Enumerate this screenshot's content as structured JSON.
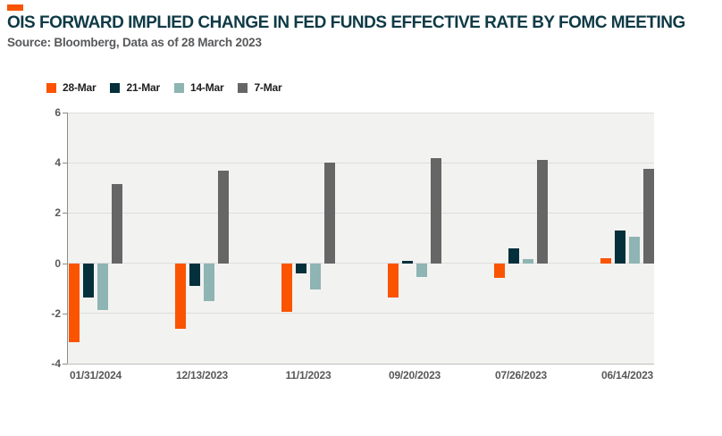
{
  "header": {
    "title": "OIS FORWARD IMPLIED CHANGE IN FED FUNDS EFFECTIVE RATE BY FOMC MEETING",
    "source": "Source: Bloomberg, Data as of 28 March 2023"
  },
  "colors": {
    "accent": "#FB5400",
    "title_text": "#0E3A46",
    "source_text": "#58595B",
    "axis_text": "#595959",
    "plot_background": "#F2F2F1",
    "gridline": "#DDDDDD",
    "axis_line": "#8C8C8C"
  },
  "chart_data": {
    "type": "bar",
    "title": "OIS FORWARD IMPLIED CHANGE IN FED FUNDS EFFECTIVE RATE BY FOMC MEETING",
    "subtitle": "Source: Bloomberg, Data as of 28 March 2023",
    "xlabel": "",
    "ylabel": "",
    "ylim": [
      -4,
      6
    ],
    "yticks": [
      6,
      4,
      2,
      0,
      -2,
      -4
    ],
    "grid": "horizontal",
    "legend_position": "top-left",
    "categories": [
      "01/31/2024",
      "12/13/2023",
      "11/1/2023",
      "09/20/2023",
      "07/26/2023",
      "06/14/2023"
    ],
    "series": [
      {
        "name": "28-Mar",
        "color": "#FB5400",
        "values": [
          -3.15,
          -2.6,
          -1.95,
          -1.35,
          -0.6,
          0.2
        ]
      },
      {
        "name": "21-Mar",
        "color": "#03303A",
        "values": [
          -1.35,
          -0.9,
          -0.4,
          0.1,
          0.6,
          1.3
        ]
      },
      {
        "name": "14-Mar",
        "color": "#8EB4B3",
        "values": [
          -1.85,
          -1.5,
          -1.05,
          -0.55,
          0.15,
          1.05
        ]
      },
      {
        "name": "7-Mar",
        "color": "#666666",
        "values": [
          3.15,
          3.7,
          4.0,
          4.2,
          4.1,
          3.75
        ]
      }
    ]
  }
}
